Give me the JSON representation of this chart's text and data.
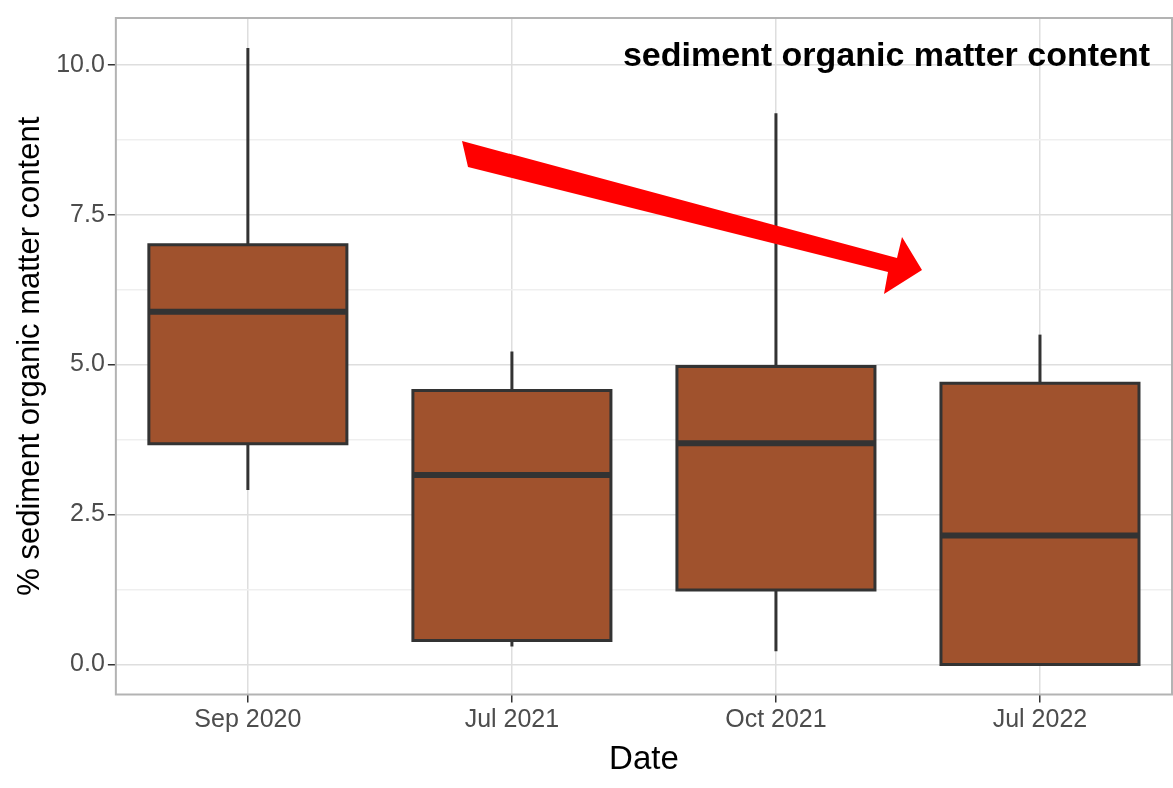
{
  "chart_data": {
    "type": "box",
    "title": "sediment organic matter content",
    "xlabel": "Date",
    "ylabel": "% sediment organic matter content",
    "categories": [
      "Sep 2020",
      "Jul 2021",
      "Oct 2021",
      "Jul 2022"
    ],
    "boxes": [
      {
        "low": 2.91,
        "q1": 3.68,
        "median": 5.88,
        "q3": 7.0,
        "high": 10.28
      },
      {
        "low": 0.3,
        "q1": 0.4,
        "median": 3.16,
        "q3": 4.57,
        "high": 5.22
      },
      {
        "low": 0.22,
        "q1": 1.24,
        "median": 3.69,
        "q3": 4.97,
        "high": 9.19
      },
      {
        "low": 0,
        "q1": 0,
        "median": 2.15,
        "q3": 4.69,
        "high": 5.5
      }
    ],
    "color": "#a0522d",
    "ylim": [
      -0.5,
      10.78
    ],
    "yticks": [
      {
        "value": 0,
        "label": "0.0"
      },
      {
        "value": 1.25,
        "label": null
      },
      {
        "value": 2.5,
        "label": "2.5"
      },
      {
        "value": 3.75,
        "label": null
      },
      {
        "value": 5,
        "label": "5.0"
      },
      {
        "value": 6.25,
        "label": null
      },
      {
        "value": 7.5,
        "label": "7.5"
      },
      {
        "value": 8.75,
        "label": null
      },
      {
        "value": 10,
        "label": "10.0"
      }
    ],
    "grid": true
  }
}
